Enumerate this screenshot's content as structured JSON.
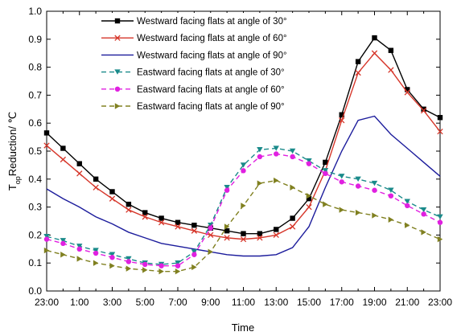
{
  "chart_data": {
    "type": "line",
    "title": "",
    "xlabel": "Time",
    "ylabel": "T",
    "ylabel_sub": "op",
    "ylabel_rest": "Reduction/ ℃",
    "ylim": [
      0.0,
      1.0
    ],
    "yticks": [
      "0.0",
      "0.1",
      "0.2",
      "0.3",
      "0.4",
      "0.5",
      "0.6",
      "0.7",
      "0.8",
      "0.9",
      "1.0"
    ],
    "x": [
      "23:00",
      "0:00",
      "1:00",
      "2:00",
      "3:00",
      "4:00",
      "5:00",
      "6:00",
      "7:00",
      "8:00",
      "9:00",
      "10:00",
      "11:00",
      "12:00",
      "13:00",
      "14:00",
      "15:00",
      "16:00",
      "17:00",
      "18:00",
      "19:00",
      "20:00",
      "21:00",
      "22:00",
      "23:00"
    ],
    "xtick_labels": [
      "23:00",
      "1:00",
      "3:00",
      "5:00",
      "7:00",
      "9:00",
      "11:00",
      "13:00",
      "15:00",
      "17:00",
      "19:00",
      "21:00",
      "23:00"
    ],
    "legend_position": "top-left",
    "grid": false,
    "series": [
      {
        "name": "Westward facing flats at angle of 30°",
        "color": "#000000",
        "dash": false,
        "marker": "square",
        "values": [
          0.565,
          0.51,
          0.455,
          0.4,
          0.355,
          0.31,
          0.28,
          0.26,
          0.245,
          0.235,
          0.225,
          0.215,
          0.205,
          0.205,
          0.22,
          0.26,
          0.33,
          0.46,
          0.63,
          0.82,
          0.905,
          0.86,
          0.72,
          0.65,
          0.62
        ]
      },
      {
        "name": "Westward facing flats at angle of 60°",
        "color": "#d6362a",
        "dash": false,
        "marker": "x",
        "values": [
          0.52,
          0.47,
          0.42,
          0.37,
          0.33,
          0.29,
          0.265,
          0.245,
          0.23,
          0.215,
          0.2,
          0.19,
          0.185,
          0.19,
          0.2,
          0.23,
          0.3,
          0.43,
          0.61,
          0.78,
          0.85,
          0.79,
          0.71,
          0.645,
          0.57
        ]
      },
      {
        "name": "Westward facing flats at angle of 90°",
        "color": "#1c1c9c",
        "dash": false,
        "marker": "none",
        "values": [
          0.365,
          0.33,
          0.3,
          0.265,
          0.24,
          0.21,
          0.19,
          0.17,
          0.16,
          0.15,
          0.14,
          0.13,
          0.125,
          0.125,
          0.13,
          0.155,
          0.23,
          0.37,
          0.5,
          0.61,
          0.625,
          0.56,
          0.51,
          0.46,
          0.41
        ]
      },
      {
        "name": "Eastward facing flats at angle of 30°",
        "color": "#1a8a8a",
        "dash": true,
        "marker": "triangle-down",
        "values": [
          0.195,
          0.18,
          0.16,
          0.145,
          0.13,
          0.115,
          0.1,
          0.095,
          0.1,
          0.14,
          0.235,
          0.37,
          0.45,
          0.505,
          0.51,
          0.5,
          0.465,
          0.43,
          0.41,
          0.4,
          0.385,
          0.36,
          0.32,
          0.29,
          0.265
        ]
      },
      {
        "name": "Eastward facing flats at angle of 60°",
        "color": "#e020e0",
        "dash": true,
        "marker": "circle",
        "values": [
          0.185,
          0.17,
          0.15,
          0.135,
          0.12,
          0.105,
          0.095,
          0.09,
          0.09,
          0.13,
          0.225,
          0.36,
          0.43,
          0.48,
          0.49,
          0.48,
          0.455,
          0.42,
          0.39,
          0.375,
          0.36,
          0.34,
          0.305,
          0.275,
          0.245
        ]
      },
      {
        "name": "Eastward facing flats at angle of 90°",
        "color": "#808020",
        "dash": true,
        "marker": "triangle-right",
        "values": [
          0.145,
          0.13,
          0.115,
          0.1,
          0.09,
          0.08,
          0.075,
          0.07,
          0.07,
          0.085,
          0.14,
          0.23,
          0.305,
          0.385,
          0.395,
          0.37,
          0.34,
          0.31,
          0.29,
          0.28,
          0.27,
          0.255,
          0.235,
          0.21,
          0.185
        ]
      }
    ]
  }
}
